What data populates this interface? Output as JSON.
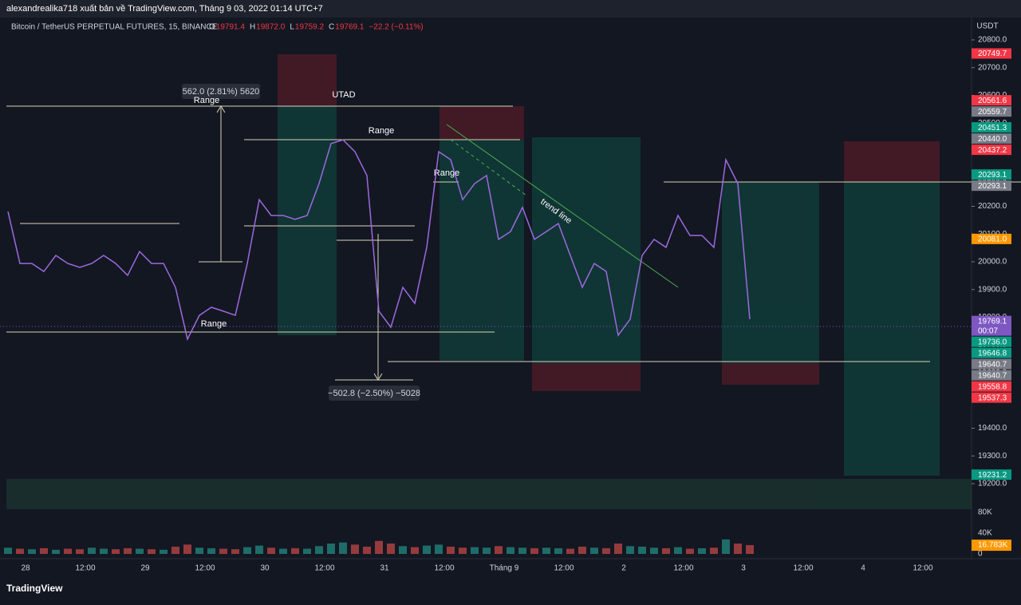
{
  "header": {
    "publisher": "alexandrealika718 xuất bản về TradingView.com, Tháng 9 03, 2022 01:14 UTC+7"
  },
  "legend": {
    "symbol": "Bitcoin / TetherUS PERPETUAL FUTURES, 15, BINANCE",
    "ohlc": [
      {
        "key": "O",
        "value": "19791.4"
      },
      {
        "key": "H",
        "value": "19872.0"
      },
      {
        "key": "L",
        "value": "19759.2"
      },
      {
        "key": "C",
        "value": "19769.1"
      }
    ],
    "change": "−22.2 (−0.11%)"
  },
  "price_axis": {
    "unit": "USDT",
    "ticks": [
      {
        "value": 20800,
        "label": "20800.0"
      },
      {
        "value": 20700,
        "label": "20700.0"
      },
      {
        "value": 20600,
        "label": "20600.0"
      },
      {
        "value": 20500,
        "label": "20500.0"
      },
      {
        "value": 20400,
        "label": "20400.0"
      },
      {
        "value": 20300,
        "label": "20300.0"
      },
      {
        "value": 20200,
        "label": "20200.0"
      },
      {
        "value": 20100,
        "label": "20100.0"
      },
      {
        "value": 20000,
        "label": "20000.0"
      },
      {
        "value": 19900,
        "label": "19900.0"
      },
      {
        "value": 19800,
        "label": "19800.0"
      },
      {
        "value": 19700,
        "label": "19700.0"
      },
      {
        "value": 19600,
        "label": "19600.0"
      },
      {
        "value": 19500,
        "label": "19500.0"
      },
      {
        "value": 19400,
        "label": "19400.0"
      },
      {
        "value": 19300,
        "label": "19300.0"
      },
      {
        "value": 19200,
        "label": "19200.0"
      }
    ]
  },
  "price_tags": [
    {
      "value": 20749.7,
      "label": "20749.7",
      "color": "#f23645"
    },
    {
      "value": 20561.6,
      "label": "20561.6",
      "color": "#f23645"
    },
    {
      "value": 20559.7,
      "label": "20559.7",
      "color": "#787b86"
    },
    {
      "value": 20451.3,
      "label": "20451.3",
      "color": "#089981"
    },
    {
      "value": 20440,
      "label": "20440.0",
      "color": "#787b86"
    },
    {
      "value": 20437.2,
      "label": "20437.2",
      "color": "#f23645"
    },
    {
      "value": 20293.1,
      "label": "20293.1",
      "color": "#089981"
    },
    {
      "value": 20293.1,
      "label": "20293.1",
      "color": "#787b86"
    },
    {
      "value": 20081,
      "label": "20081.0",
      "color": "#ff9800"
    },
    {
      "value": 19769.1,
      "label": "19769.1",
      "color": "#7e57c2",
      "countdown": "00:07"
    },
    {
      "value": 19736,
      "label": "19736.0",
      "color": "#089981"
    },
    {
      "value": 19646.8,
      "label": "19646.8",
      "color": "#089981"
    },
    {
      "value": 19640.7,
      "label": "19640.7",
      "color": "#787b86"
    },
    {
      "value": 19640.7,
      "label": "19640.7",
      "color": "#787b86"
    },
    {
      "value": 19558.8,
      "label": "19558.8",
      "color": "#f23645"
    },
    {
      "value": 19537.3,
      "label": "19537.3",
      "color": "#f23645"
    },
    {
      "value": 19231.2,
      "label": "19231.2",
      "color": "#089981"
    }
  ],
  "volume_axis": {
    "ticks": [
      {
        "value": 80,
        "label": "80K"
      },
      {
        "value": 40,
        "label": "40K"
      },
      0
    ]
  },
  "volume_tag": {
    "value": 16.783,
    "label": "16.783K",
    "color": "#ff9800"
  },
  "time_axis": [
    "28",
    "12:00",
    "29",
    "12:00",
    "30",
    "12:00",
    "31",
    "12:00",
    "Tháng 9",
    "12:00",
    "2",
    "12:00",
    "3",
    "12:00",
    "4",
    "12:00"
  ],
  "annotations": {
    "up_measure": "562.0 (2.81%) 5620",
    "down_measure": "−502.8 (−2.50%) −5028",
    "utad": "UTAD",
    "ranges": [
      "Range",
      "Range",
      "Range",
      "Range"
    ],
    "trend_line": "trend line"
  },
  "price_trace": [
    20181,
    19994,
    19994,
    19965,
    20023,
    19994,
    19980,
    19994,
    20023,
    19994,
    19951,
    20037,
    19994,
    19994,
    19908,
    19721,
    19807,
    19836,
    19822,
    19807,
    19994,
    20224,
    20167,
    20167,
    20153,
    20167,
    20282,
    20426,
    20440,
    20397,
    20311,
    19822,
    19764,
    19908,
    19850,
    20052,
    20397,
    20368,
    20224,
    20282,
    20311,
    20081,
    20109,
    20196,
    20081,
    20109,
    20138,
    20023,
    19908,
    19994,
    19965,
    19735,
    19793,
    20023,
    20081,
    20052,
    20167,
    20095,
    20095,
    20052,
    20368,
    20282,
    19793
  ],
  "volume_trace": [
    12,
    10,
    9,
    11,
    8,
    10,
    9,
    12,
    10,
    9,
    11,
    10,
    9,
    8,
    14,
    18,
    12,
    11,
    10,
    9,
    13,
    16,
    12,
    10,
    11,
    10,
    15,
    20,
    22,
    18,
    14,
    25,
    20,
    15,
    13,
    16,
    18,
    14,
    12,
    13,
    12,
    15,
    13,
    12,
    11,
    12,
    11,
    10,
    14,
    12,
    11,
    20,
    15,
    14,
    12,
    11,
    13,
    10,
    11,
    12,
    28,
    20,
    17
  ],
  "footer": "TradingView"
}
